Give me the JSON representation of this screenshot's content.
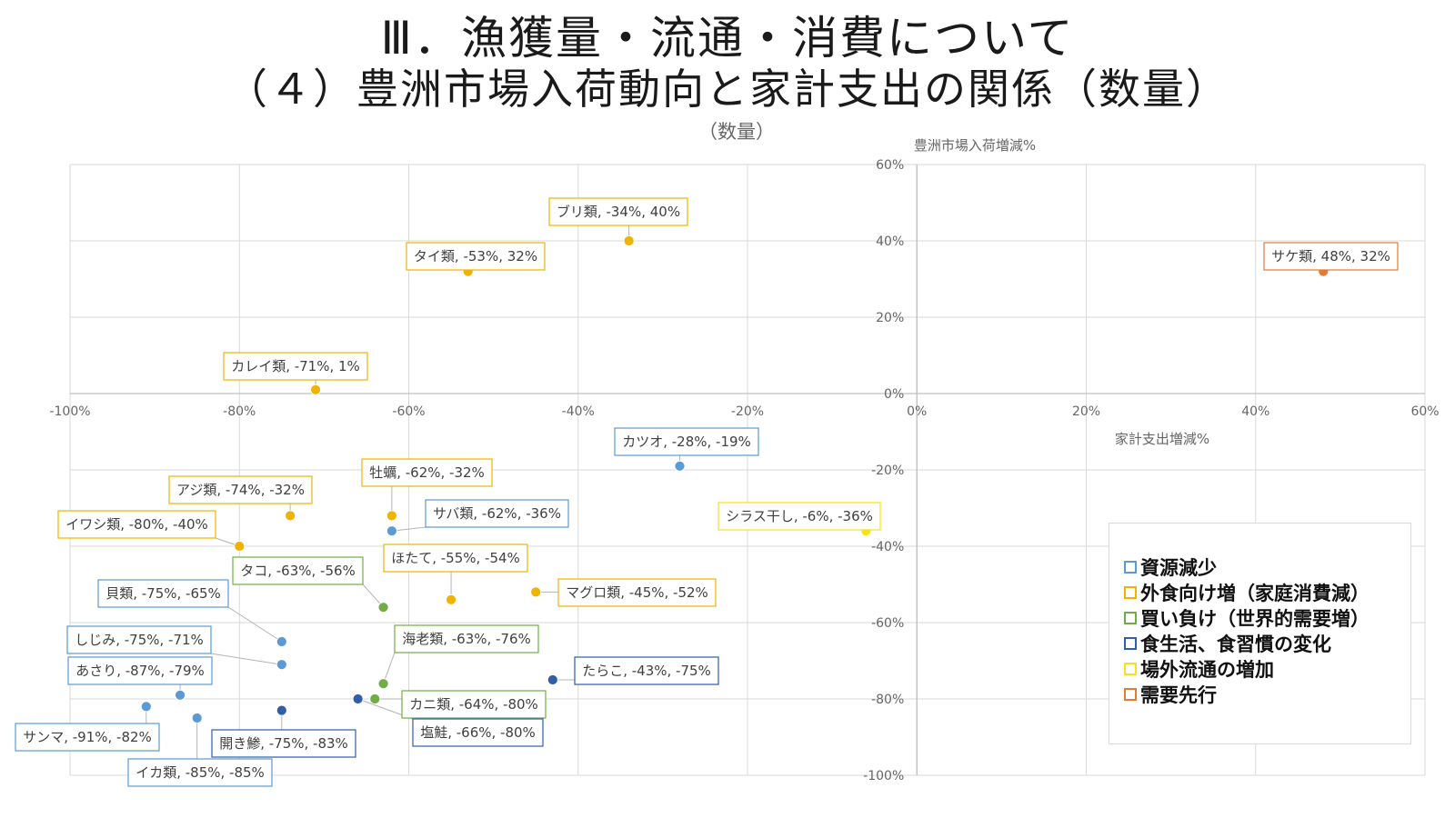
{
  "page": {
    "title_line1": "Ⅲ．漁獲量・流通・消費について",
    "title_line2": "（４）豊洲市場入荷動向と家計支出の関係（数量）"
  },
  "chart_data": {
    "type": "scatter",
    "title": "（数量）",
    "xlabel": "家計支出増減%",
    "ylabel": "豊洲市場入荷増減%",
    "xlim": [
      -100,
      60
    ],
    "ylim": [
      -100,
      60
    ],
    "xticks": [
      -100,
      -80,
      -60,
      -40,
      -20,
      0,
      20,
      40,
      60
    ],
    "yticks": [
      -100,
      -80,
      -60,
      -40,
      -20,
      0,
      20,
      40,
      60
    ],
    "tick_format": "percent",
    "grid": true,
    "legend_position": "bottom-right",
    "categories": [
      {
        "id": "resource",
        "name": "資源減少",
        "color": "#5b9bd5"
      },
      {
        "id": "dining",
        "name": "外食向け増（家庭消費減）",
        "color": "#f0b400"
      },
      {
        "id": "buying",
        "name": "買い負け（世界的需要増）",
        "color": "#70ad47"
      },
      {
        "id": "diet",
        "name": "食生活、食習慣の変化",
        "color": "#2e5fa8"
      },
      {
        "id": "offmarket",
        "name": "場外流通の増加",
        "color": "#f5e31a"
      },
      {
        "id": "demand",
        "name": "需要先行",
        "color": "#e07b39"
      }
    ],
    "points": [
      {
        "label": "ブリ類, -34%, 40%",
        "x": -34,
        "y": 40,
        "category": "dining"
      },
      {
        "label": "タイ類, -53%, 32%",
        "x": -53,
        "y": 32,
        "category": "dining"
      },
      {
        "label": "サケ類, 48%, 32%",
        "x": 48,
        "y": 32,
        "category": "demand"
      },
      {
        "label": "カレイ類, -71%, 1%",
        "x": -71,
        "y": 1,
        "category": "dining"
      },
      {
        "label": "カツオ, -28%, -19%",
        "x": -28,
        "y": -19,
        "category": "resource"
      },
      {
        "label": "牡蠣, -62%, -32%",
        "x": -62,
        "y": -32,
        "category": "dining"
      },
      {
        "label": "アジ類, -74%, -32%",
        "x": -74,
        "y": -32,
        "category": "dining"
      },
      {
        "label": "サバ類, -62%, -36%",
        "x": -62,
        "y": -36,
        "category": "resource"
      },
      {
        "label": "シラス干し, -6%, -36%",
        "x": -6,
        "y": -36,
        "category": "offmarket"
      },
      {
        "label": "イワシ類, -80%, -40%",
        "x": -80,
        "y": -40,
        "category": "dining"
      },
      {
        "label": "ほたて, -55%, -54%",
        "x": -55,
        "y": -54,
        "category": "dining"
      },
      {
        "label": "マグロ類, -45%, -52%",
        "x": -45,
        "y": -52,
        "category": "dining"
      },
      {
        "label": "タコ, -63%, -56%",
        "x": -63,
        "y": -56,
        "category": "buying"
      },
      {
        "label": "貝類, -75%, -65%",
        "x": -75,
        "y": -65,
        "category": "resource"
      },
      {
        "label": "しじみ, -75%, -71%",
        "x": -75,
        "y": -71,
        "category": "resource"
      },
      {
        "label": "海老類, -63%, -76%",
        "x": -63,
        "y": -76,
        "category": "buying"
      },
      {
        "label": "たらこ, -43%, -75%",
        "x": -43,
        "y": -75,
        "category": "diet"
      },
      {
        "label": "あさり, -87%, -79%",
        "x": -87,
        "y": -79,
        "category": "resource"
      },
      {
        "label": "カニ類, -64%, -80%",
        "x": -64,
        "y": -80,
        "category": "buying"
      },
      {
        "label": "塩鮭, -66%, -80%",
        "x": -66,
        "y": -80,
        "category": "diet"
      },
      {
        "label": "サンマ, -91%, -82%",
        "x": -91,
        "y": -82,
        "category": "resource"
      },
      {
        "label": "開き鯵, -75%, -83%",
        "x": -75,
        "y": -83,
        "category": "diet"
      },
      {
        "label": "イカ類, -85%, -85%",
        "x": -85,
        "y": -85,
        "category": "resource"
      }
    ]
  }
}
